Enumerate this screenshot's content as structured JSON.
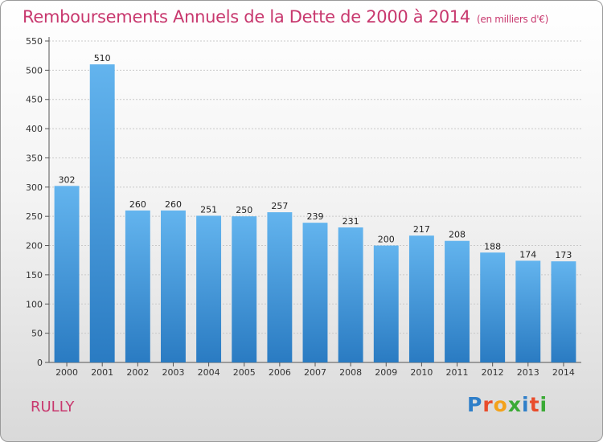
{
  "header": {
    "title": "Remboursements Annuels de la Dette de 2000 à 2014",
    "unit": "(en milliers d'€)"
  },
  "footer": {
    "city": "RULLY",
    "logo_letters": [
      "P",
      "r",
      "o",
      "x",
      "i",
      "t",
      "i"
    ],
    "logo_colors": [
      "#2f7fc9",
      "#e94c2b",
      "#f3a21b",
      "#3aaa35",
      "#2f7fc9",
      "#e94c2b",
      "#3aaa35"
    ]
  },
  "chart_data": {
    "type": "bar",
    "categories": [
      "2000",
      "2001",
      "2002",
      "2003",
      "2004",
      "2005",
      "2006",
      "2007",
      "2008",
      "2009",
      "2010",
      "2011",
      "2012",
      "2013",
      "2014"
    ],
    "values": [
      302,
      510,
      260,
      260,
      251,
      250,
      257,
      239,
      231,
      200,
      217,
      208,
      188,
      174,
      173
    ],
    "ylim": [
      0,
      550
    ],
    "yticks": [
      0,
      50,
      100,
      150,
      200,
      250,
      300,
      350,
      400,
      450,
      500,
      550
    ],
    "grid": true,
    "bar_color_top": "#63b4ee",
    "bar_color_bottom": "#2a7bc2"
  }
}
